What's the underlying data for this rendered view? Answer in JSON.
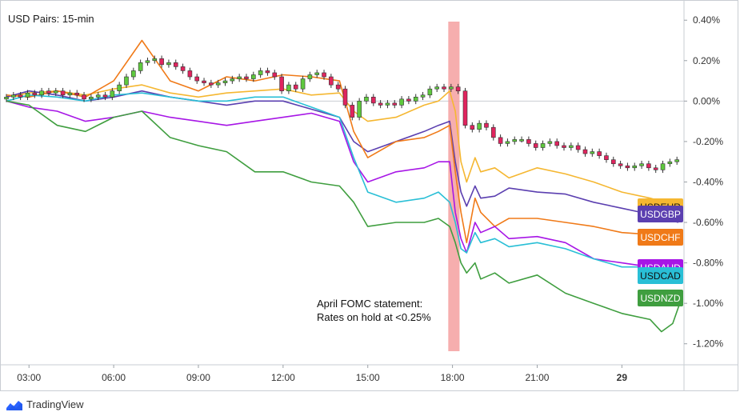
{
  "chart_data": {
    "type": "line",
    "title": "USD Pairs: 15-min",
    "xlabel": "",
    "ylabel": "",
    "x_ticks": [
      "03:00",
      "06:00",
      "09:00",
      "12:00",
      "15:00",
      "18:00",
      "21:00",
      "29"
    ],
    "x_tick_hours": [
      3,
      6,
      9,
      12,
      15,
      18,
      21,
      24
    ],
    "x_range_hours": [
      2.2,
      26.2
    ],
    "y_ticks": [
      "0.40%",
      "0.20%",
      "0.00%",
      "-0.20%",
      "-0.40%",
      "-0.60%",
      "-0.80%",
      "-1.00%",
      "-1.20%"
    ],
    "y_tick_values": [
      0.4,
      0.2,
      0,
      -0.2,
      -0.4,
      -0.6,
      -0.8,
      -1.0,
      -1.2
    ],
    "ylim": [
      -1.3,
      0.48
    ],
    "grid": false,
    "highlight_band_hours": [
      17.85,
      18.25
    ],
    "annotation": {
      "line1": "April FOMC statement:",
      "line2": "Rates on hold at <0.25%"
    },
    "series": [
      {
        "name": "USDEUR",
        "color": "#f5b731",
        "x": [
          2.2,
          3,
          4,
          5,
          6,
          7,
          8,
          9,
          10,
          11,
          12,
          13,
          14,
          14.5,
          15,
          16,
          17,
          17.5,
          17.9,
          18.1,
          18.3,
          18.5,
          18.8,
          19,
          19.5,
          20,
          21,
          22,
          23,
          24,
          25,
          26
        ],
        "y": [
          0.02,
          0.04,
          0.05,
          0.03,
          0.06,
          0.08,
          0.04,
          0.02,
          0.04,
          0.05,
          0.06,
          0.03,
          0.04,
          -0.05,
          -0.1,
          -0.08,
          -0.02,
          0,
          0.05,
          -0.05,
          -0.3,
          -0.4,
          -0.28,
          -0.35,
          -0.33,
          -0.38,
          -0.33,
          -0.36,
          -0.4,
          -0.45,
          -0.48,
          -0.52
        ]
      },
      {
        "name": "USDGBP",
        "color": "#5b3fb0",
        "x": [
          2.2,
          3,
          4,
          5,
          6,
          7,
          8,
          9,
          10,
          11,
          12,
          13,
          14,
          14.5,
          15,
          16,
          17,
          17.5,
          17.9,
          18.1,
          18.3,
          18.5,
          18.8,
          19,
          19.5,
          20,
          21,
          22,
          23,
          24,
          25,
          26
        ],
        "y": [
          0.02,
          0.05,
          0.03,
          0,
          0.02,
          0.05,
          0.02,
          0,
          -0.02,
          0,
          0,
          -0.04,
          -0.08,
          -0.2,
          -0.25,
          -0.2,
          -0.15,
          -0.12,
          -0.1,
          -0.3,
          -0.45,
          -0.52,
          -0.42,
          -0.48,
          -0.47,
          -0.43,
          -0.45,
          -0.46,
          -0.5,
          -0.53,
          -0.56,
          -0.6
        ]
      },
      {
        "name": "USDCHF",
        "color": "#f07a18",
        "x": [
          2.2,
          3,
          4,
          5,
          6,
          7,
          8,
          9,
          10,
          11,
          12,
          13,
          14,
          14.5,
          15,
          16,
          17,
          17.5,
          17.9,
          18.1,
          18.3,
          18.5,
          18.8,
          19,
          19.5,
          20,
          21,
          22,
          23,
          24,
          25,
          26
        ],
        "y": [
          0.03,
          0.02,
          0.05,
          0.02,
          0.1,
          0.3,
          0.1,
          0.05,
          0.12,
          0.1,
          0.13,
          0.12,
          0.1,
          -0.15,
          -0.28,
          -0.2,
          -0.18,
          -0.15,
          -0.12,
          -0.35,
          -0.55,
          -0.7,
          -0.48,
          -0.55,
          -0.62,
          -0.58,
          -0.58,
          -0.6,
          -0.62,
          -0.65,
          -0.66,
          -0.7
        ]
      },
      {
        "name": "USDAUD",
        "color": "#a716e6",
        "x": [
          2.2,
          3,
          4,
          5,
          6,
          7,
          8,
          9,
          10,
          11,
          12,
          13,
          14,
          14.5,
          15,
          16,
          17,
          17.5,
          17.9,
          18.1,
          18.3,
          18.5,
          18.8,
          19,
          19.5,
          20,
          21,
          22,
          23,
          24,
          25,
          26
        ],
        "y": [
          0,
          -0.03,
          -0.05,
          -0.1,
          -0.08,
          -0.05,
          -0.08,
          -0.1,
          -0.12,
          -0.1,
          -0.08,
          -0.06,
          -0.1,
          -0.3,
          -0.4,
          -0.35,
          -0.33,
          -0.3,
          -0.3,
          -0.55,
          -0.68,
          -0.75,
          -0.6,
          -0.65,
          -0.62,
          -0.68,
          -0.67,
          -0.7,
          -0.78,
          -0.8,
          -0.82,
          -0.82
        ]
      },
      {
        "name": "USDCAD",
        "color": "#29bfd6",
        "x": [
          2.2,
          3,
          4,
          5,
          6,
          7,
          8,
          9,
          10,
          11,
          12,
          13,
          14,
          14.5,
          15,
          16,
          17,
          17.5,
          17.9,
          18.1,
          18.3,
          18.5,
          18.8,
          19,
          19.5,
          20,
          21,
          22,
          23,
          24,
          25,
          26
        ],
        "y": [
          0,
          0.03,
          0.02,
          0,
          0.03,
          0.04,
          0.02,
          0,
          0,
          0.02,
          0.02,
          -0.03,
          -0.08,
          -0.28,
          -0.45,
          -0.5,
          -0.48,
          -0.45,
          -0.5,
          -0.6,
          -0.73,
          -0.75,
          -0.65,
          -0.7,
          -0.68,
          -0.72,
          -0.7,
          -0.73,
          -0.78,
          -0.82,
          -0.82,
          -0.84
        ]
      },
      {
        "name": "USDNZD",
        "color": "#3f9e3f",
        "x": [
          2.2,
          3,
          4,
          5,
          6,
          7,
          8,
          9,
          10,
          11,
          12,
          13,
          14,
          14.5,
          15,
          16,
          17,
          17.5,
          17.9,
          18.1,
          18.3,
          18.5,
          18.8,
          19,
          19.5,
          20,
          21,
          22,
          23,
          24,
          25,
          25.4,
          25.8,
          26.1
        ],
        "y": [
          0,
          -0.02,
          -0.12,
          -0.15,
          -0.08,
          -0.05,
          -0.18,
          -0.22,
          -0.25,
          -0.35,
          -0.35,
          -0.4,
          -0.42,
          -0.5,
          -0.62,
          -0.6,
          -0.6,
          -0.58,
          -0.62,
          -0.7,
          -0.8,
          -0.85,
          -0.8,
          -0.88,
          -0.85,
          -0.9,
          -0.86,
          -0.95,
          -1.0,
          -1.05,
          -1.08,
          -1.14,
          -1.1,
          -0.98
        ]
      }
    ],
    "candles_series": {
      "name": "USD",
      "up_color": "#5fc93e",
      "down_color": "#e0245e",
      "x": [
        2.2,
        2.45,
        2.7,
        2.95,
        3.2,
        3.45,
        3.7,
        3.95,
        4.2,
        4.45,
        4.7,
        4.95,
        5.2,
        5.45,
        5.7,
        5.95,
        6.2,
        6.45,
        6.7,
        6.95,
        7.2,
        7.45,
        7.7,
        7.95,
        8.2,
        8.45,
        8.7,
        8.95,
        9.2,
        9.45,
        9.7,
        9.95,
        10.2,
        10.45,
        10.7,
        10.95,
        11.2,
        11.45,
        11.7,
        11.95,
        12.2,
        12.45,
        12.7,
        12.95,
        13.2,
        13.45,
        13.7,
        13.95,
        14.2,
        14.45,
        14.7,
        14.95,
        15.2,
        15.45,
        15.7,
        15.95,
        16.2,
        16.45,
        16.7,
        16.95,
        17.2,
        17.45,
        17.7,
        17.95,
        18.2,
        18.45,
        18.7,
        18.95,
        19.2,
        19.45,
        19.7,
        19.95,
        20.2,
        20.45,
        20.7,
        20.95,
        21.2,
        21.45,
        21.7,
        21.95,
        22.2,
        22.45,
        22.7,
        22.95,
        23.2,
        23.45,
        23.7,
        23.95,
        24.2,
        24.45,
        24.7,
        24.95,
        25.2,
        25.45,
        25.7,
        25.95
      ],
      "y": [
        0.02,
        0.03,
        0.02,
        0.04,
        0.03,
        0.05,
        0.04,
        0.05,
        0.03,
        0.04,
        0.03,
        0.01,
        0.02,
        0.03,
        0.02,
        0.05,
        0.08,
        0.12,
        0.15,
        0.19,
        0.2,
        0.21,
        0.18,
        0.19,
        0.17,
        0.15,
        0.12,
        0.1,
        0.09,
        0.08,
        0.09,
        0.1,
        0.11,
        0.12,
        0.11,
        0.13,
        0.15,
        0.14,
        0.12,
        0.05,
        0.08,
        0.06,
        0.11,
        0.13,
        0.14,
        0.12,
        0.08,
        0.06,
        -0.02,
        -0.08,
        0,
        0.02,
        -0.01,
        -0.02,
        -0.01,
        -0.02,
        0.01,
        0,
        0.02,
        0.03,
        0.06,
        0.07,
        0.06,
        0.07,
        0.05,
        -0.12,
        -0.14,
        -0.11,
        -0.13,
        -0.18,
        -0.21,
        -0.2,
        -0.19,
        -0.19,
        -0.21,
        -0.23,
        -0.21,
        -0.2,
        -0.22,
        -0.23,
        -0.22,
        -0.24,
        -0.26,
        -0.25,
        -0.27,
        -0.29,
        -0.31,
        -0.32,
        -0.33,
        -0.32,
        -0.31,
        -0.33,
        -0.34,
        -0.31,
        -0.3,
        -0.29
      ]
    }
  },
  "footer": {
    "brand": "TradingView"
  }
}
